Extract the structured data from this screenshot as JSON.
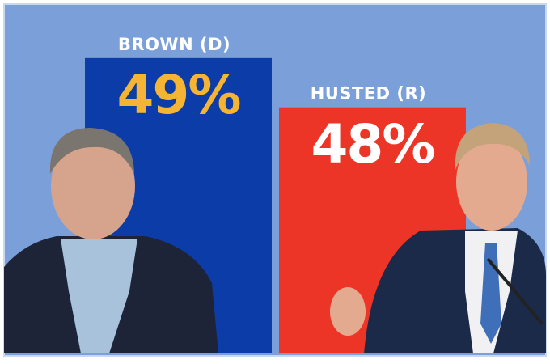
{
  "chart_data": {
    "type": "bar",
    "categories": [
      "BROWN (D)",
      "HUSTED (R)"
    ],
    "values": [
      49,
      48
    ],
    "value_labels": [
      "49%",
      "48%"
    ],
    "colors": [
      "#0b3ca8",
      "#ec3526"
    ],
    "label_colors": [
      "#f5b532",
      "#ffffff"
    ],
    "ylim": [
      43,
      50
    ]
  }
}
